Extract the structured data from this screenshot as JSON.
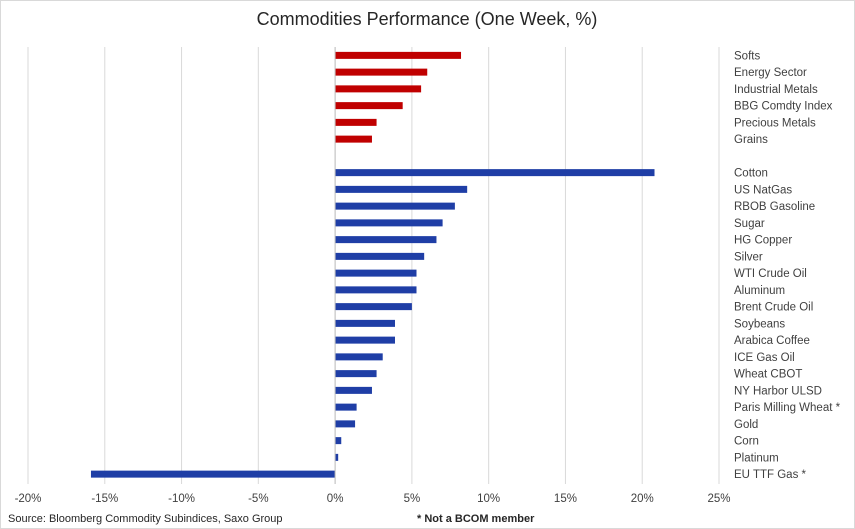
{
  "chart_data": {
    "type": "bar",
    "orientation": "horizontal",
    "title": "Commodities Performance (One Week, %)",
    "xlabel": "",
    "ylabel": "",
    "xlim": [
      -20,
      25
    ],
    "xticks": [
      -20,
      -15,
      -10,
      -5,
      0,
      5,
      10,
      15,
      20,
      25
    ],
    "xtick_labels": [
      "-20%",
      "-15%",
      "-10%",
      "-5%",
      "0%",
      "5%",
      "10%",
      "15%",
      "20%",
      "25%"
    ],
    "grid": "vertical",
    "legend": "none",
    "groups": [
      {
        "color": "#c00000",
        "categories": [
          "Softs",
          "Energy Sector",
          "Industrial Metals",
          "BBG Comdty Index",
          "Precious Metals",
          "Grains"
        ],
        "values": [
          8.2,
          6.0,
          5.6,
          4.4,
          2.7,
          2.4
        ]
      },
      {
        "color": "#1f3ea6",
        "categories": [
          "Cotton",
          "US NatGas",
          "RBOB Gasoline",
          "Sugar",
          "HG Copper",
          "Silver",
          "WTI Crude Oil",
          "Aluminum",
          "Brent Crude Oil",
          "Soybeans",
          "Arabica Coffee",
          "ICE Gas Oil",
          "Wheat CBOT",
          "NY Harbor ULSD",
          "Paris Milling Wheat *",
          "Gold",
          "Corn",
          "Platinum",
          "EU TTF Gas *"
        ],
        "values": [
          20.8,
          8.6,
          7.8,
          7.0,
          6.6,
          5.8,
          5.3,
          5.3,
          5.0,
          3.9,
          3.9,
          3.1,
          2.7,
          2.4,
          1.4,
          1.3,
          0.4,
          0.2,
          -15.9
        ]
      }
    ]
  },
  "footer": {
    "source": "Source: Bloomberg Commodity Subindices, Saxo Group",
    "note": "* Not a BCOM member"
  }
}
